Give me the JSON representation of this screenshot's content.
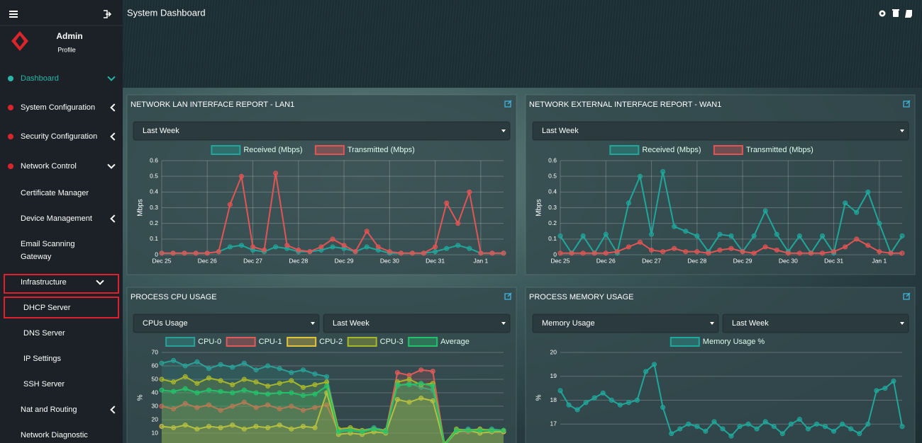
{
  "header": {
    "title": "System Dashboard"
  },
  "sidebar": {
    "user": "Admin",
    "profile": "Profile",
    "menu": [
      {
        "label": "Dashboard"
      },
      {
        "label": "System Configuration"
      },
      {
        "label": "Security Configuration"
      },
      {
        "label": "Network Control"
      },
      {
        "label": "Certificate Manager"
      },
      {
        "label": "Device Management"
      },
      {
        "label": "Email Scanning Gateway"
      },
      {
        "label": "Infrastructure"
      },
      {
        "label": "DHCP Server"
      },
      {
        "label": "DNS Server"
      },
      {
        "label": "IP Settings"
      },
      {
        "label": "SSH Server"
      },
      {
        "label": "Nat and Routing"
      },
      {
        "label": "Network Diagnostic"
      }
    ]
  },
  "chart_data": [
    {
      "type": "line",
      "title": "NETWORK LAN INTERFACE REPORT - LAN1",
      "filters": [
        "Last Week"
      ],
      "y_label": "Mbps",
      "categories": [
        "Dec 25",
        null,
        null,
        null,
        "Dec 26",
        null,
        null,
        null,
        "Dec 27",
        null,
        null,
        null,
        "Dec 28",
        null,
        null,
        null,
        "Dec 29",
        null,
        null,
        null,
        "Dec 30",
        null,
        null,
        null,
        "Dec 31",
        null,
        null,
        null,
        "Jan 1",
        null,
        null
      ],
      "ylim": [
        0,
        0.6
      ],
      "yticks": [
        0,
        0.1,
        0.2,
        0.3,
        0.4,
        0.5,
        0.6
      ],
      "grid": true,
      "series": [
        {
          "name": "Received (Mbps)",
          "color": "#1fa79b",
          "values": [
            0.01,
            0.01,
            0.01,
            0.01,
            0.01,
            0.02,
            0.05,
            0.06,
            0.03,
            0.02,
            0.05,
            0.04,
            0.02,
            0.02,
            0.03,
            0.05,
            0.04,
            0.02,
            0.05,
            0.03,
            0.01,
            0.01,
            0.01,
            0.01,
            0.02,
            0.04,
            0.06,
            0.04,
            0.01,
            0.01,
            0.01
          ]
        },
        {
          "name": "Transmitted (Mbps)",
          "color": "#e35454",
          "values": [
            0.01,
            0.01,
            0.01,
            0.01,
            0.01,
            0.02,
            0.32,
            0.5,
            0.05,
            0.03,
            0.52,
            0.06,
            0.03,
            0.02,
            0.05,
            0.1,
            0.06,
            0.02,
            0.15,
            0.05,
            0.02,
            0.01,
            0.01,
            0.01,
            0.05,
            0.33,
            0.2,
            0.4,
            0.01,
            0.01,
            0.01
          ]
        }
      ]
    },
    {
      "type": "line",
      "title": "NETWORK EXTERNAL INTERFACE REPORT - WAN1",
      "filters": [
        "Last Week"
      ],
      "y_label": "Mbps",
      "categories": [
        "Dec 25",
        null,
        null,
        null,
        "Dec 26",
        null,
        null,
        null,
        "Dec 27",
        null,
        null,
        null,
        "Dec 28",
        null,
        null,
        null,
        "Dec 29",
        null,
        null,
        null,
        "Dec 30",
        null,
        null,
        null,
        "Dec 31",
        null,
        null,
        null,
        "Jan 1",
        null,
        null
      ],
      "ylim": [
        0,
        0.6
      ],
      "yticks": [
        0,
        0.1,
        0.2,
        0.3,
        0.4,
        0.5,
        0.6
      ],
      "grid": true,
      "series": [
        {
          "name": "Received (Mbps)",
          "color": "#1fa79b",
          "values": [
            0.12,
            0.01,
            0.12,
            0.01,
            0.13,
            0.01,
            0.33,
            0.5,
            0.13,
            0.53,
            0.18,
            0.15,
            0.12,
            0.02,
            0.13,
            0.12,
            0.02,
            0.12,
            0.28,
            0.13,
            0.02,
            0.12,
            0.01,
            0.12,
            0.01,
            0.33,
            0.27,
            0.4,
            0.2,
            0.01,
            0.12
          ]
        },
        {
          "name": "Transmitted (Mbps)",
          "color": "#e35454",
          "values": [
            0.01,
            0.01,
            0.01,
            0.01,
            0.01,
            0.02,
            0.05,
            0.08,
            0.03,
            0.02,
            0.04,
            0.02,
            0.02,
            0.01,
            0.03,
            0.04,
            0.02,
            0.01,
            0.05,
            0.03,
            0.01,
            0.01,
            0.01,
            0.01,
            0.02,
            0.05,
            0.1,
            0.06,
            0.02,
            0.01,
            0.01
          ]
        }
      ]
    },
    {
      "type": "line",
      "title": "PROCESS CPU USAGE",
      "filters": [
        "CPUs Usage",
        "Last Week"
      ],
      "y_label": "%",
      "ylim": [
        0,
        70
      ],
      "yticks": [
        10,
        20,
        30,
        40,
        50,
        60,
        70
      ],
      "grid": true,
      "area": true,
      "series": [
        {
          "name": "CPU-0",
          "color": "#2aa198",
          "values": [
            62,
            64,
            60,
            63,
            58,
            61,
            59,
            62,
            57,
            60,
            58,
            55,
            57,
            54,
            52,
            12,
            13,
            12,
            14,
            12,
            45,
            47,
            44,
            42,
            2,
            12,
            13,
            12,
            13,
            12
          ]
        },
        {
          "name": "CPU-1",
          "color": "#e05a5a",
          "values": [
            30,
            28,
            32,
            29,
            31,
            27,
            30,
            33,
            29,
            31,
            28,
            30,
            27,
            29,
            31,
            11,
            12,
            11,
            13,
            11,
            55,
            53,
            57,
            56,
            1,
            12,
            11,
            13,
            12,
            12
          ]
        },
        {
          "name": "CPU-2",
          "color": "#e2c23a",
          "values": [
            15,
            14,
            16,
            13,
            15,
            14,
            16,
            13,
            15,
            14,
            16,
            13,
            15,
            14,
            40,
            9,
            10,
            9,
            11,
            10,
            35,
            33,
            36,
            34,
            1,
            11,
            12,
            10,
            11,
            11
          ]
        },
        {
          "name": "CPU-3",
          "color": "#a8b62a",
          "values": [
            50,
            48,
            52,
            47,
            51,
            49,
            46,
            50,
            48,
            45,
            47,
            49,
            44,
            46,
            48,
            13,
            14,
            12,
            13,
            12,
            48,
            50,
            46,
            47,
            2,
            13,
            12,
            13,
            12,
            12
          ]
        },
        {
          "name": "Average",
          "color": "#23c26a",
          "values": [
            42,
            41,
            43,
            40,
            42,
            41,
            40,
            42,
            40,
            39,
            40,
            40,
            38,
            39,
            45,
            11,
            12,
            11,
            13,
            11,
            46,
            46,
            47,
            45,
            1,
            12,
            12,
            12,
            12,
            12
          ]
        }
      ]
    },
    {
      "type": "line",
      "title": "PROCESS MEMORY USAGE",
      "filters": [
        "Memory Usage",
        "Last Week"
      ],
      "y_label": "%",
      "ylim": [
        16,
        20
      ],
      "yticks": [
        17,
        18,
        19,
        20
      ],
      "grid": true,
      "series": [
        {
          "name": "Memory Usage %",
          "color": "#1fa79b",
          "values": [
            18.4,
            17.8,
            17.6,
            17.9,
            18.1,
            18.3,
            18.0,
            17.8,
            17.9,
            18.0,
            19.2,
            19.5,
            17.7,
            16.6,
            16.8,
            17.0,
            16.9,
            16.7,
            17.1,
            16.8,
            16.5,
            16.9,
            17.0,
            16.8,
            17.1,
            16.9,
            16.6,
            17.0,
            17.2,
            16.8,
            17.0,
            16.9,
            16.7,
            17.0,
            16.8,
            16.6,
            17.0,
            18.4,
            18.5,
            18.8,
            16.9
          ]
        }
      ]
    }
  ]
}
